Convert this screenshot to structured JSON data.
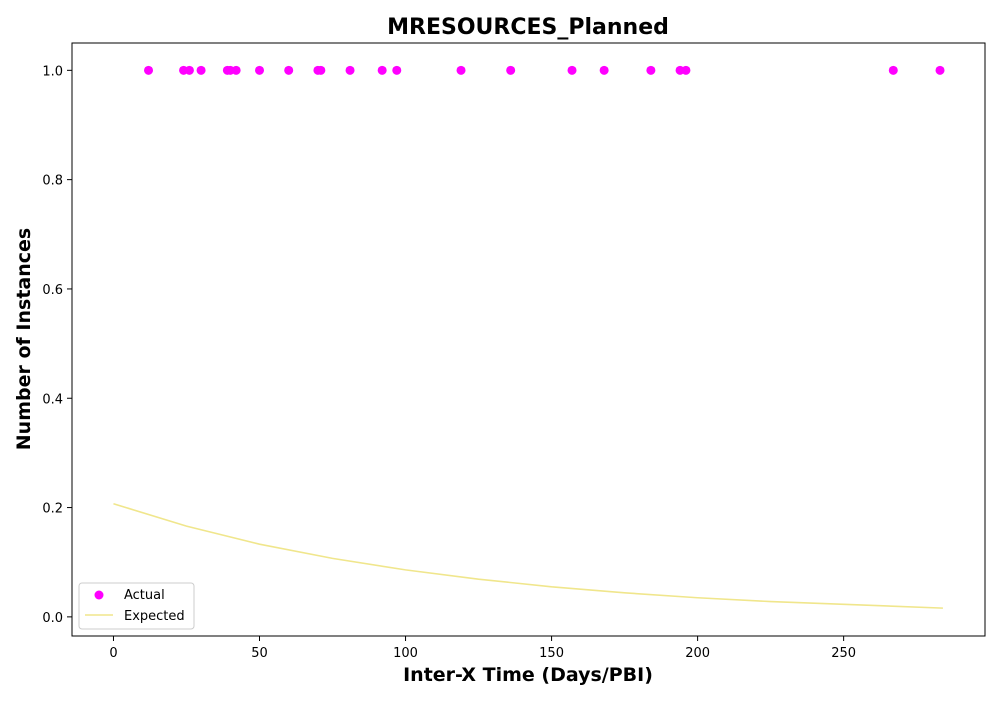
{
  "chart_data": {
    "type": "scatter",
    "title": "MRESOURCES_Planned",
    "xlabel": "Inter-X Time (Days/PBI)",
    "ylabel": "Number of Instances",
    "xlim": [
      -14.2,
      298.4
    ],
    "ylim": [
      -0.035,
      1.05
    ],
    "xticks": [
      0,
      50,
      100,
      150,
      200,
      250
    ],
    "xtick_labels": [
      "0",
      "50",
      "100",
      "150",
      "200",
      "250"
    ],
    "yticks": [
      0.0,
      0.2,
      0.4,
      0.6,
      0.8,
      1.0
    ],
    "ytick_labels": [
      "0.0",
      "0.2",
      "0.4",
      "0.6",
      "0.8",
      "1.0"
    ],
    "grid": false,
    "legend_position": "lower-left",
    "series": [
      {
        "name": "Actual",
        "kind": "scatter",
        "color": "#ff00ff",
        "x": [
          12,
          24,
          26,
          30,
          39,
          40,
          42,
          50,
          60,
          70,
          71,
          81,
          92,
          97,
          119,
          136,
          157,
          168,
          184,
          194,
          196,
          267,
          283
        ],
        "y": [
          1,
          1,
          1,
          1,
          1,
          1,
          1,
          1,
          1,
          1,
          1,
          1,
          1,
          1,
          1,
          1,
          1,
          1,
          1,
          1,
          1,
          1,
          1
        ]
      },
      {
        "name": "Expected",
        "kind": "line",
        "color": "#f0e68c",
        "x": [
          0,
          25,
          50,
          75,
          100,
          125,
          150,
          175,
          200,
          225,
          250,
          284
        ],
        "y": [
          0.207,
          0.166,
          0.133,
          0.107,
          0.086,
          0.069,
          0.055,
          0.044,
          0.035,
          0.028,
          0.023,
          0.016
        ]
      }
    ]
  }
}
